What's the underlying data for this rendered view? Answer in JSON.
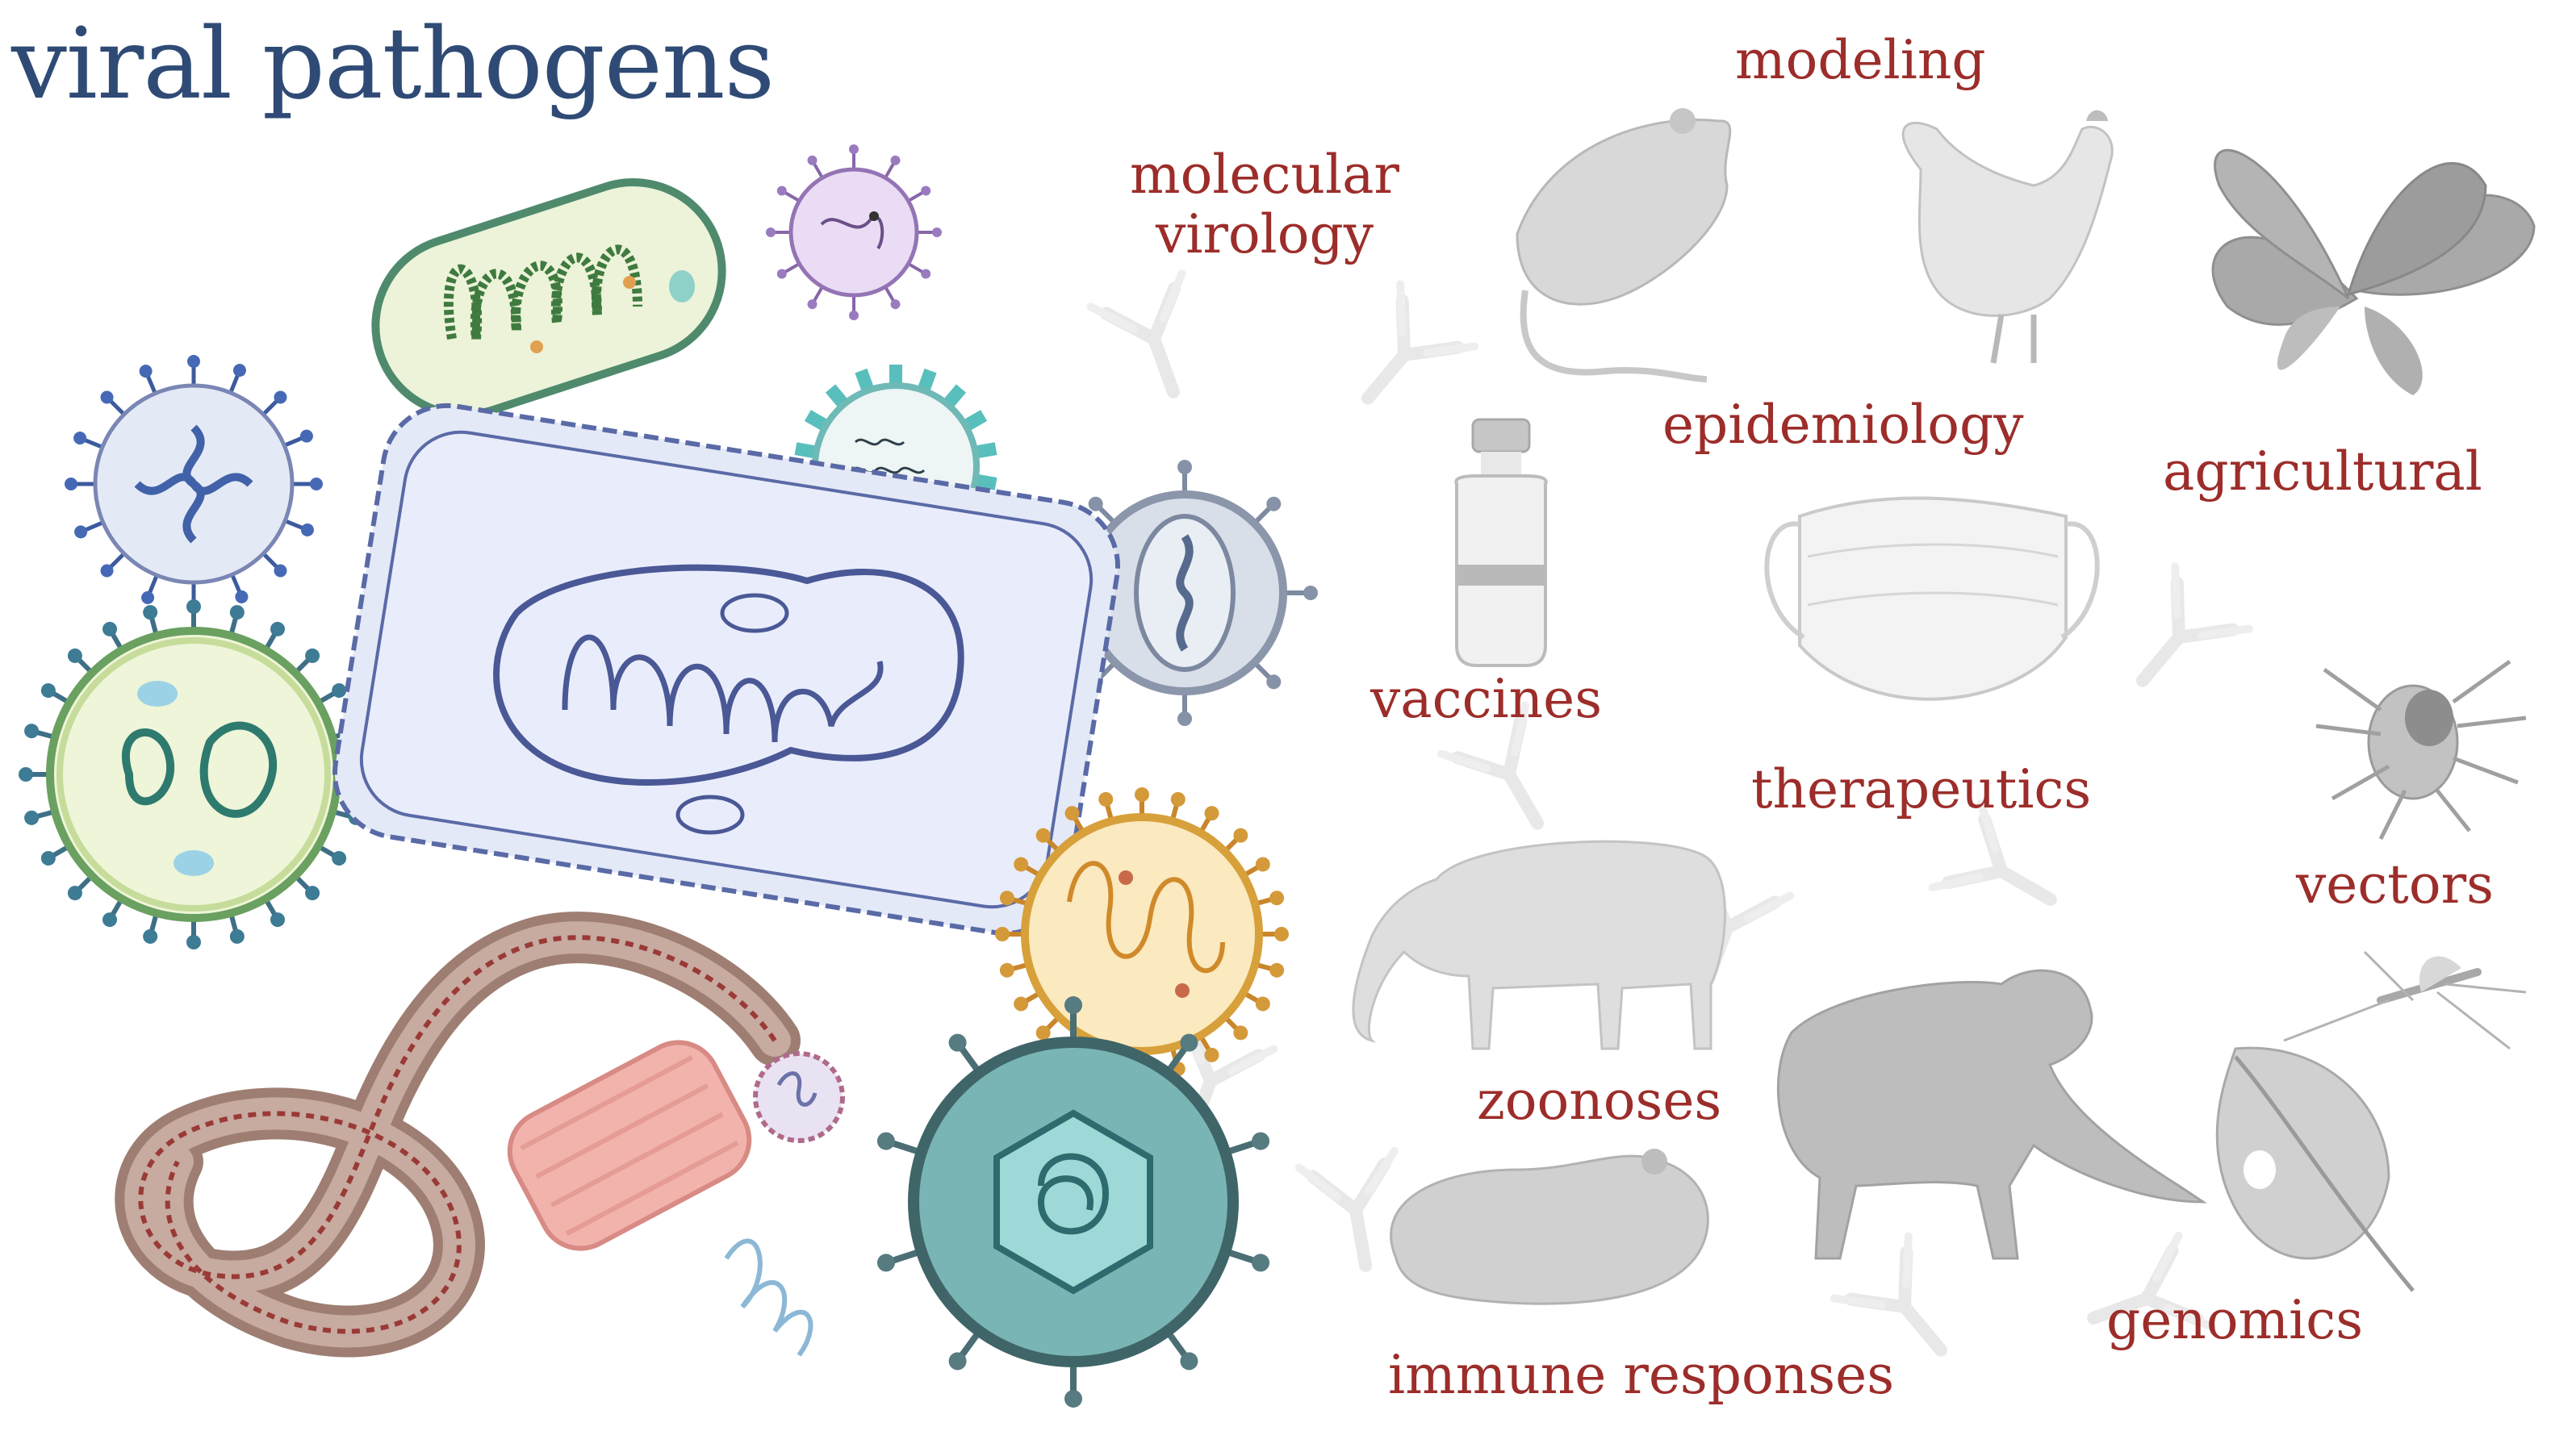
{
  "title": "viral pathogens",
  "labels": {
    "modeling": "modeling",
    "molecular_virology_line1": "molecular",
    "molecular_virology_line2": "virology",
    "epidemiology": "epidemiology",
    "agricultural": "agricultural",
    "vaccines": "vaccines",
    "therapeutics": "therapeutics",
    "vectors": "vectors",
    "zoonoses": "zoonoses",
    "genomics": "genomics",
    "immune_responses": "immune responses"
  },
  "colors": {
    "title": "#2f4b75",
    "label": "#9c2d2a",
    "silhouette": "#d2d2d2",
    "silhouette_dark": "#a8a8a8"
  },
  "icons": [
    "rat-icon",
    "chicken-icon",
    "plant-icon",
    "vaccine-vial-icon",
    "face-mask-icon",
    "tick-icon",
    "mosquito-icon",
    "cow-icon",
    "monkey-icon",
    "hamster-icon",
    "leaf-icon",
    "antibody-icon",
    "virus-icon",
    "bacterium-icon",
    "filovirus-icon",
    "tobacco-mosaic-virus-icon"
  ]
}
